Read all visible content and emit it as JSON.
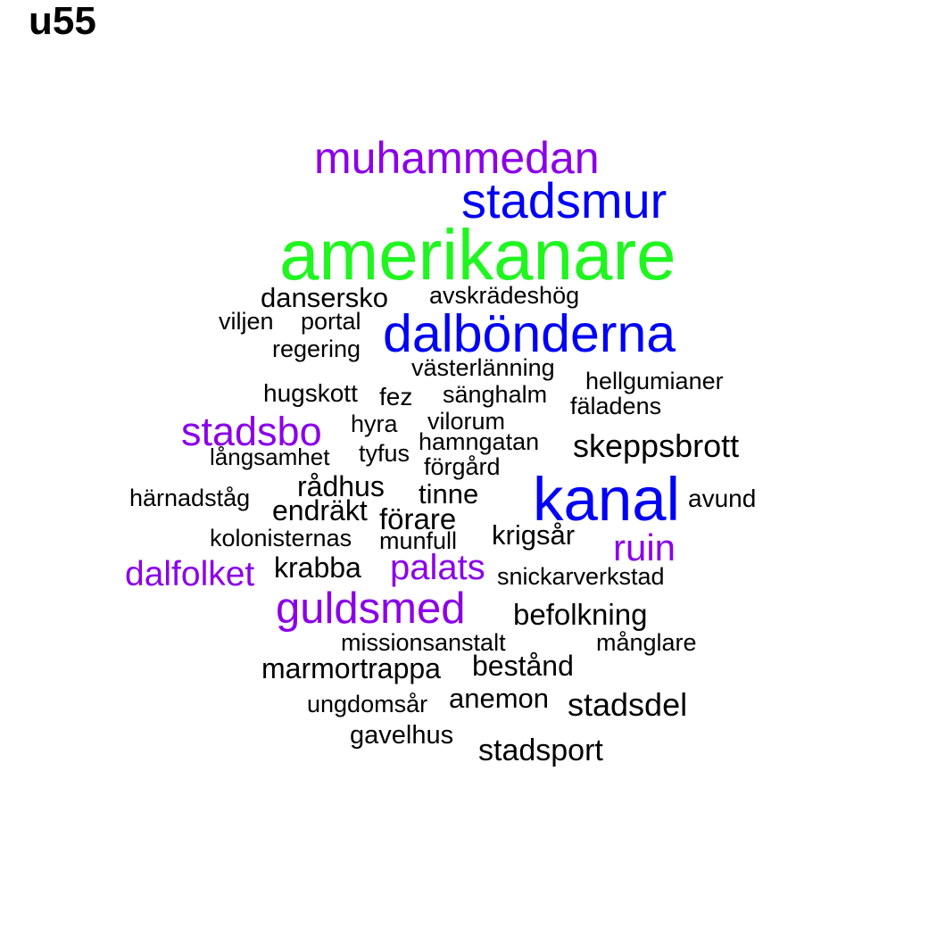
{
  "title": "u55",
  "words": [
    {
      "text": "amerikanare",
      "color": "#1ff51f"
    },
    {
      "text": "muhammedan",
      "color": "#8b00e8"
    },
    {
      "text": "stadsmur",
      "color": "#0000f5"
    },
    {
      "text": "dansersko",
      "color": "#000000"
    },
    {
      "text": "avskrädeshög",
      "color": "#000000"
    },
    {
      "text": "viljen",
      "color": "#000000"
    },
    {
      "text": "portal",
      "color": "#000000"
    },
    {
      "text": "dalbönderna",
      "color": "#0000f5"
    },
    {
      "text": "regering",
      "color": "#000000"
    },
    {
      "text": "västerlänning",
      "color": "#000000"
    },
    {
      "text": "hellgumianer",
      "color": "#000000"
    },
    {
      "text": "hugskott",
      "color": "#000000"
    },
    {
      "text": "fez",
      "color": "#000000"
    },
    {
      "text": "sänghalm",
      "color": "#000000"
    },
    {
      "text": "fäladens",
      "color": "#000000"
    },
    {
      "text": "stadsbo",
      "color": "#8b00e8"
    },
    {
      "text": "hyra",
      "color": "#000000"
    },
    {
      "text": "vilorum",
      "color": "#000000"
    },
    {
      "text": "hamngatan",
      "color": "#000000"
    },
    {
      "text": "skeppsbrott",
      "color": "#000000"
    },
    {
      "text": "långsamhet",
      "color": "#000000"
    },
    {
      "text": "tyfus",
      "color": "#000000"
    },
    {
      "text": "förgård",
      "color": "#000000"
    },
    {
      "text": "rådhus",
      "color": "#000000"
    },
    {
      "text": "tinne",
      "color": "#000000"
    },
    {
      "text": "kanal",
      "color": "#0000f5"
    },
    {
      "text": "härnadståg",
      "color": "#000000"
    },
    {
      "text": "endräkt",
      "color": "#000000"
    },
    {
      "text": "avund",
      "color": "#000000"
    },
    {
      "text": "förare",
      "color": "#000000"
    },
    {
      "text": "kolonisternas",
      "color": "#000000"
    },
    {
      "text": "munfull",
      "color": "#000000"
    },
    {
      "text": "krigsår",
      "color": "#000000"
    },
    {
      "text": "ruin",
      "color": "#8b00e8"
    },
    {
      "text": "krabba",
      "color": "#000000"
    },
    {
      "text": "palats",
      "color": "#8b00e8"
    },
    {
      "text": "dalfolket",
      "color": "#8b00e8"
    },
    {
      "text": "snickarverkstad",
      "color": "#000000"
    },
    {
      "text": "guldsmed",
      "color": "#8b00e8"
    },
    {
      "text": "befolkning",
      "color": "#000000"
    },
    {
      "text": "missionsanstalt",
      "color": "#000000"
    },
    {
      "text": "månglare",
      "color": "#000000"
    },
    {
      "text": "marmortrappa",
      "color": "#000000"
    },
    {
      "text": "bestånd",
      "color": "#000000"
    },
    {
      "text": "ungdomsår",
      "color": "#000000"
    },
    {
      "text": "anemon",
      "color": "#000000"
    },
    {
      "text": "stadsdel",
      "color": "#000000"
    },
    {
      "text": "gavelhus",
      "color": "#000000"
    },
    {
      "text": "stadsport",
      "color": "#000000"
    }
  ]
}
